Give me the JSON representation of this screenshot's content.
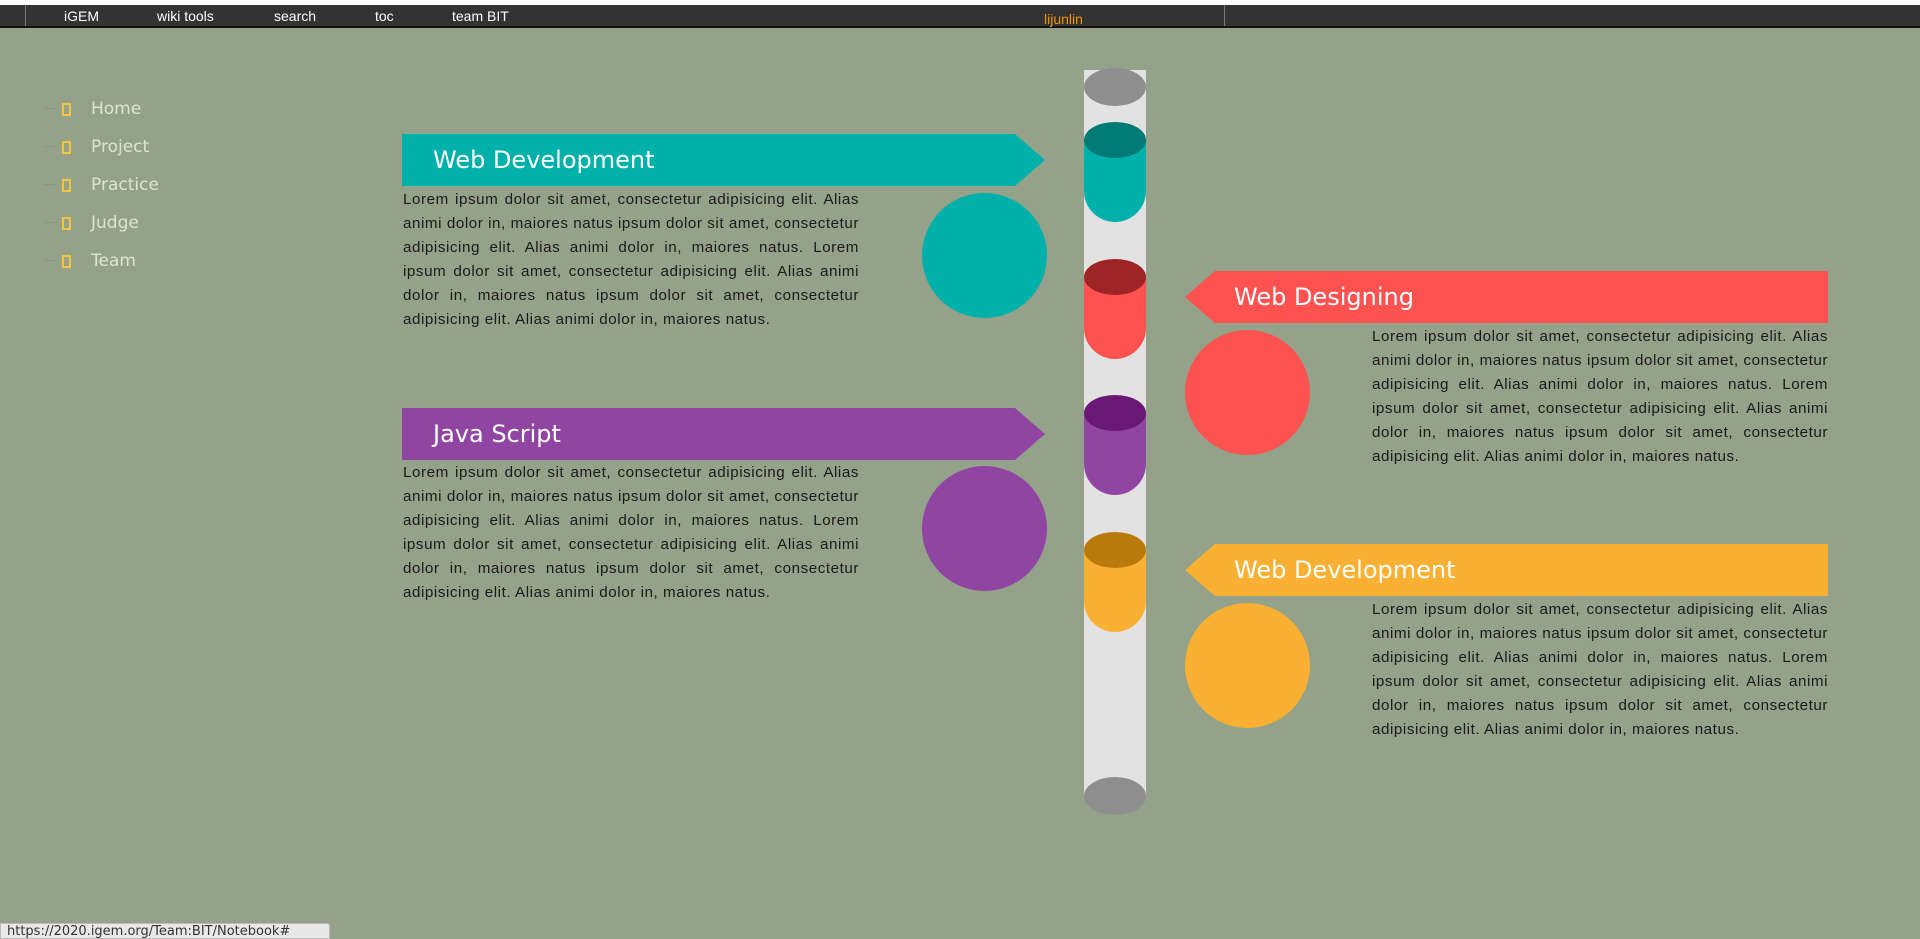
{
  "topbar": {
    "menu": [
      "iGEM",
      "wiki tools",
      "search",
      "toc",
      "team BIT"
    ],
    "user": "lijunlin"
  },
  "sidenav": {
    "items": [
      "Home",
      "Project",
      "Practice",
      "Judge",
      "Team"
    ],
    "accent": "#f5c542"
  },
  "timeline": {
    "entries": [
      {
        "title": "Web Development",
        "color": "#00b0aa",
        "dark": "#007a74",
        "side": "left"
      },
      {
        "title": "Web Designing",
        "color": "#fd5250",
        "dark": "#9e2425",
        "side": "right"
      },
      {
        "title": "Java Script",
        "color": "#9145a3",
        "dark": "#6a1876",
        "side": "left"
      },
      {
        "title": "Web Development",
        "color": "#f9b033",
        "dark": "#b97a0b",
        "side": "right"
      }
    ],
    "body_text": "Lorem ipsum dolor sit amet, consectetur adipisicing elit. Alias animi dolor in, maiores natus ipsum dolor sit amet, consectetur adipisicing elit. Alias animi dolor in, maiores natus. Lorem ipsum dolor sit amet, consectetur adipisicing elit. Alias animi dolor in, maiores natus ipsum dolor sit amet, consectetur adipisicing elit. Alias animi dolor in, maiores natus."
  },
  "statusbar": {
    "url": "https://2020.igem.org/Team:BIT/Notebook#"
  }
}
